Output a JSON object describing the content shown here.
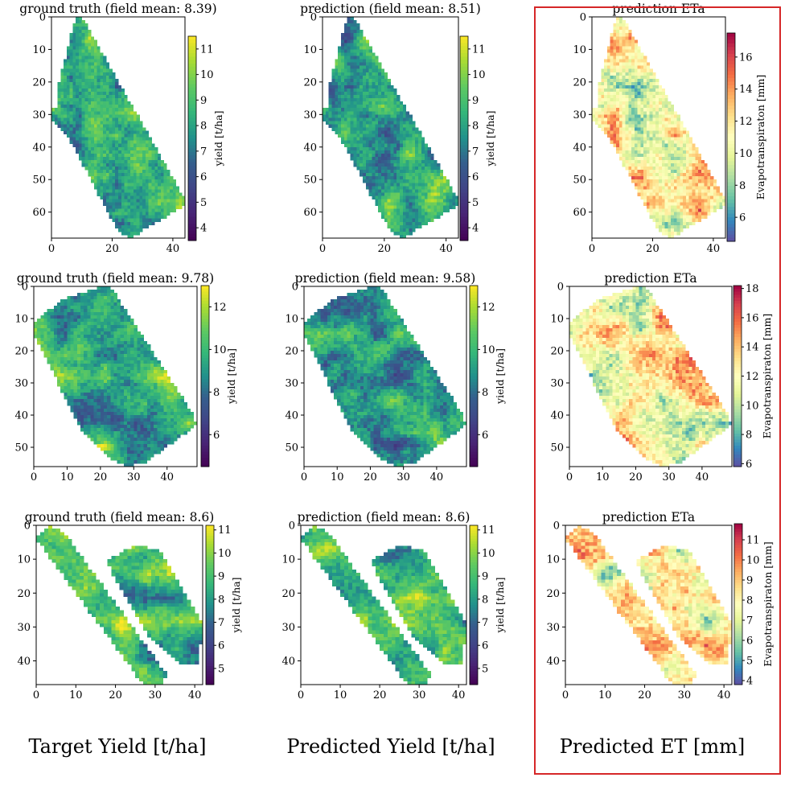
{
  "figure": {
    "column_labels": [
      "Target Yield [t/ha]",
      "Predicted Yield [t/ha]",
      "Predicted ET [mm]"
    ],
    "highlight_color": "#d62728"
  },
  "chart_data": [
    {
      "type": "heatmap",
      "title": "ground truth (field mean: 8.39)",
      "colormap": "viridis",
      "colorbar_label": "yield [t/ha]",
      "field": "field-1",
      "mean": 8.39,
      "xlim": [
        0,
        44
      ],
      "ylim": [
        68,
        0
      ],
      "xticks": [
        0,
        20,
        40
      ],
      "yticks": [
        0,
        10,
        20,
        30,
        40,
        50,
        60
      ],
      "color_range": [
        3.5,
        11.5
      ],
      "colorbar_ticks": [
        4,
        5,
        6,
        7,
        8,
        9,
        10,
        11
      ],
      "seed": 11
    },
    {
      "type": "heatmap",
      "title": "prediction (field mean: 8.51)",
      "colormap": "viridis",
      "colorbar_label": "yield [t/ha]",
      "field": "field-1",
      "mean": 8.51,
      "xlim": [
        0,
        44
      ],
      "ylim": [
        68,
        0
      ],
      "xticks": [
        0,
        20,
        40
      ],
      "yticks": [
        0,
        10,
        20,
        30,
        40,
        50,
        60
      ],
      "color_range": [
        3.5,
        11.5
      ],
      "colorbar_ticks": [
        4,
        5,
        6,
        7,
        8,
        9,
        10,
        11
      ],
      "seed": 12
    },
    {
      "type": "heatmap",
      "title": "prediction ETa",
      "colormap": "spectral_r",
      "colorbar_label": "Evapotranspiraton [mm]",
      "field": "field-1",
      "mean": 11.5,
      "xlim": [
        0,
        44
      ],
      "ylim": [
        68,
        0
      ],
      "xticks": [
        0,
        20,
        40
      ],
      "yticks": [
        0,
        10,
        20,
        30,
        40,
        50,
        60
      ],
      "color_range": [
        4.5,
        17.5
      ],
      "colorbar_ticks": [
        6,
        8,
        10,
        12,
        14,
        16
      ],
      "seed": 13
    },
    {
      "type": "heatmap",
      "title": "ground truth (field mean: 9.78)",
      "colormap": "viridis",
      "colorbar_label": "yield [t/ha]",
      "field": "field-2",
      "mean": 9.78,
      "xlim": [
        0,
        49
      ],
      "ylim": [
        56,
        0
      ],
      "xticks": [
        0,
        10,
        20,
        30,
        40
      ],
      "yticks": [
        0,
        10,
        20,
        30,
        40,
        50
      ],
      "color_range": [
        4.5,
        13
      ],
      "colorbar_ticks": [
        6,
        8,
        10,
        12
      ],
      "seed": 21
    },
    {
      "type": "heatmap",
      "title": "prediction (field mean: 9.58)",
      "colormap": "viridis",
      "colorbar_label": "yield [t/ha]",
      "field": "field-2",
      "mean": 9.58,
      "xlim": [
        0,
        49
      ],
      "ylim": [
        56,
        0
      ],
      "xticks": [
        0,
        10,
        20,
        30,
        40
      ],
      "yticks": [
        0,
        10,
        20,
        30,
        40,
        50
      ],
      "color_range": [
        4.5,
        13
      ],
      "colorbar_ticks": [
        6,
        8,
        10,
        12
      ],
      "seed": 22
    },
    {
      "type": "heatmap",
      "title": "prediction ETa",
      "colormap": "spectral_r",
      "colorbar_label": "Evapotranspiraton [mm]",
      "field": "field-2",
      "mean": 12,
      "xlim": [
        0,
        49
      ],
      "ylim": [
        56,
        0
      ],
      "xticks": [
        0,
        10,
        20,
        30,
        40
      ],
      "yticks": [
        0,
        10,
        20,
        30,
        40,
        50
      ],
      "color_range": [
        5.8,
        18.2
      ],
      "colorbar_ticks": [
        6,
        8,
        10,
        12,
        14,
        16,
        18
      ],
      "seed": 23
    },
    {
      "type": "heatmap",
      "title": "ground truth (field mean: 8.6)",
      "colormap": "viridis",
      "colorbar_label": "yield [t/ha]",
      "field": "field-3",
      "mean": 8.6,
      "xlim": [
        0,
        42
      ],
      "ylim": [
        47,
        0
      ],
      "xticks": [
        0,
        10,
        20,
        30,
        40
      ],
      "yticks": [
        0,
        10,
        20,
        30,
        40
      ],
      "color_range": [
        4.3,
        11.2
      ],
      "colorbar_ticks": [
        5,
        6,
        7,
        8,
        9,
        10,
        11
      ],
      "seed": 31
    },
    {
      "type": "heatmap",
      "title": "prediction (field mean: 8.6)",
      "colormap": "viridis",
      "colorbar_label": "yield [t/ha]",
      "field": "field-3",
      "mean": 8.6,
      "xlim": [
        0,
        42
      ],
      "ylim": [
        47,
        0
      ],
      "xticks": [
        0,
        10,
        20,
        30,
        40
      ],
      "yticks": [
        0,
        10,
        20,
        30,
        40
      ],
      "color_range": [
        4.3,
        11.2
      ],
      "colorbar_ticks": [
        5,
        6,
        7,
        8,
        9,
        10,
        11
      ],
      "seed": 32
    },
    {
      "type": "heatmap",
      "title": "prediction ETa",
      "colormap": "spectral_r",
      "colorbar_label": "Evapotranspiraton [mm]",
      "field": "field-3",
      "mean": 8,
      "xlim": [
        0,
        42
      ],
      "ylim": [
        47,
        0
      ],
      "xticks": [
        0,
        10,
        20,
        30,
        40
      ],
      "yticks": [
        0,
        10,
        20,
        30,
        40
      ],
      "color_range": [
        3.8,
        11.8
      ],
      "colorbar_ticks": [
        4,
        5,
        6,
        7,
        8,
        9,
        10,
        11
      ],
      "seed": 33
    }
  ]
}
